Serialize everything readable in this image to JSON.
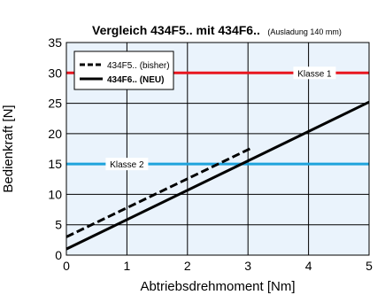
{
  "chart_data": {
    "type": "line",
    "title": "Vergleich 434F5.. mit 434F6..",
    "subtitle": "(Ausladung 140 mm)",
    "xlabel": "Abtriebsdrehmoment [Nm]",
    "ylabel": "Bedienkraft [N]",
    "xlim": [
      0,
      5
    ],
    "ylim": [
      0,
      35
    ],
    "xticks": [
      0,
      1,
      2,
      3,
      4,
      5
    ],
    "yticks": [
      0,
      5,
      10,
      15,
      20,
      25,
      30,
      35
    ],
    "grid": true,
    "legend_position": "top-left",
    "series": [
      {
        "name": "434F5.. (bisher)",
        "style": "dashed",
        "color": "#000000",
        "x": [
          0,
          3.05
        ],
        "y": [
          3.0,
          17.6
        ]
      },
      {
        "name": "434F6.. (NEU)",
        "style": "solid",
        "color": "#000000",
        "x": [
          0,
          5
        ],
        "y": [
          1.0,
          25.2
        ]
      }
    ],
    "reference_lines": [
      {
        "label": "Klasse 1",
        "y": 30,
        "color": "#e8161f"
      },
      {
        "label": "Klasse 2",
        "y": 15,
        "color": "#1ea3dc"
      }
    ]
  },
  "colors": {
    "plot_background": "#eaf3fc",
    "grid": "#000000"
  }
}
